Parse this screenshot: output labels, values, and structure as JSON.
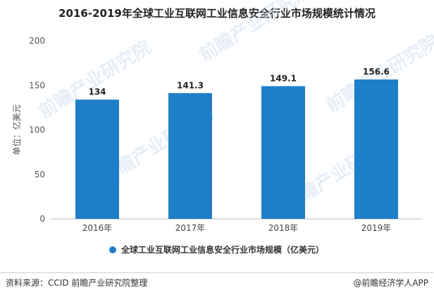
{
  "chart_data": {
    "type": "bar",
    "title": "2016-2019年全球工业互联网工业信息安全行业市场规模统计情况",
    "ylabel": "单位：亿美元",
    "xlabel": "",
    "categories": [
      "2016年",
      "2017年",
      "2018年",
      "2019年"
    ],
    "series": [
      {
        "name": "全球工业互联网工业信息安全行业市场规模（亿美元）",
        "values": [
          134,
          141.3,
          149.1,
          156.6
        ]
      }
    ],
    "data_labels": [
      "134",
      "141.3",
      "149.1",
      "156.6"
    ],
    "yticks": [
      0,
      50,
      100,
      150,
      200
    ],
    "ylim": [
      0,
      200
    ],
    "grid": false,
    "legend_position": "bottom",
    "bar_color": "#1f7ec8"
  },
  "footer": {
    "source": "资料来源：CCID 前瞻产业研究院整理",
    "brand": "@前瞻经济学人APP"
  },
  "watermark": "前瞻产业研究院"
}
